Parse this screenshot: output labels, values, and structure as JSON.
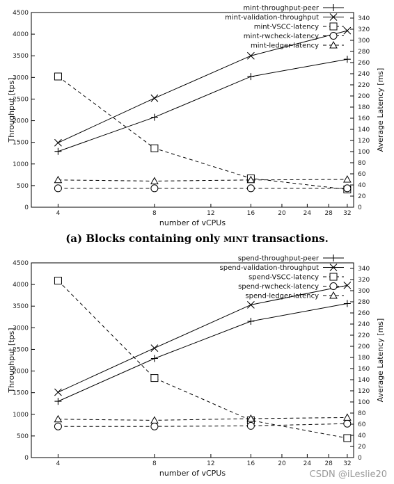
{
  "caption": {
    "prefix": "(a) Blocks containing only ",
    "keyword": "mint",
    "suffix": " transactions."
  },
  "watermark": "CSDN @iLeslie20",
  "chart_data": [
    {
      "type": "line",
      "xlabel": "number of vCPUs",
      "ylabel": "Throughput [tps]",
      "y2label": "Average Latency [ms]",
      "x_scale": "log2",
      "x_ticks": [
        4,
        8,
        12,
        16,
        20,
        24,
        28,
        32
      ],
      "x_range": [
        3.3,
        33.5
      ],
      "ylim": [
        0,
        4500
      ],
      "y_ticks": [
        0,
        500,
        1000,
        1500,
        2000,
        2500,
        3000,
        3500,
        4000,
        4500
      ],
      "y2lim": [
        0,
        350
      ],
      "y2_ticks": [
        0,
        20,
        40,
        60,
        80,
        100,
        120,
        140,
        160,
        180,
        200,
        220,
        240,
        260,
        280,
        300,
        320,
        340
      ],
      "legend_position": "top-right",
      "grid": false,
      "x": [
        4,
        8,
        16,
        32
      ],
      "series": [
        {
          "name": "mint-throughput-peer",
          "axis": "left",
          "marker": "plus",
          "dash": "solid",
          "values": [
            1290,
            2080,
            3020,
            3420
          ]
        },
        {
          "name": "mint-validation-throughput",
          "axis": "left",
          "marker": "cross",
          "dash": "solid",
          "values": [
            1490,
            2520,
            3500,
            4080
          ]
        },
        {
          "name": "mint-VSCC-latency",
          "axis": "right",
          "marker": "square",
          "dash": "dashed",
          "values": [
            235,
            106,
            52,
            32
          ]
        },
        {
          "name": "mint-rwcheck-latency",
          "axis": "right",
          "marker": "circle",
          "dash": "dashed",
          "values": [
            34,
            34,
            34,
            34
          ]
        },
        {
          "name": "mint-ledger-latency",
          "axis": "right",
          "marker": "triangle",
          "dash": "dashed",
          "values": [
            49,
            47,
            49,
            50
          ]
        }
      ]
    },
    {
      "type": "line",
      "xlabel": "number of vCPUs",
      "ylabel": "Throughput [tps]",
      "y2label": "Average Latency [ms]",
      "x_scale": "log2",
      "x_ticks": [
        4,
        8,
        12,
        16,
        20,
        24,
        28,
        32
      ],
      "x_range": [
        3.3,
        33.5
      ],
      "ylim": [
        0,
        4500
      ],
      "y_ticks": [
        0,
        500,
        1000,
        1500,
        2000,
        2500,
        3000,
        3500,
        4000,
        4500
      ],
      "y2lim": [
        0,
        350
      ],
      "y2_ticks": [
        0,
        20,
        40,
        60,
        80,
        100,
        120,
        140,
        160,
        180,
        200,
        220,
        240,
        260,
        280,
        300,
        320,
        340
      ],
      "legend_position": "top-right",
      "grid": false,
      "x": [
        4,
        8,
        16,
        32
      ],
      "series": [
        {
          "name": "spend-throughput-peer",
          "axis": "left",
          "marker": "plus",
          "dash": "solid",
          "values": [
            1300,
            2290,
            3150,
            3560
          ]
        },
        {
          "name": "spend-validation-throughput",
          "axis": "left",
          "marker": "cross",
          "dash": "solid",
          "values": [
            1510,
            2530,
            3530,
            3980
          ]
        },
        {
          "name": "spend-VSCC-latency",
          "axis": "right",
          "marker": "square",
          "dash": "dashed",
          "values": [
            318,
            143,
            67,
            35
          ]
        },
        {
          "name": "spend-rwcheck-latency",
          "axis": "right",
          "marker": "circle",
          "dash": "dashed",
          "values": [
            56,
            56,
            57,
            61
          ]
        },
        {
          "name": "spend-ledger-latency",
          "axis": "right",
          "marker": "triangle",
          "dash": "dashed",
          "values": [
            69,
            67,
            70,
            72
          ]
        }
      ]
    }
  ]
}
